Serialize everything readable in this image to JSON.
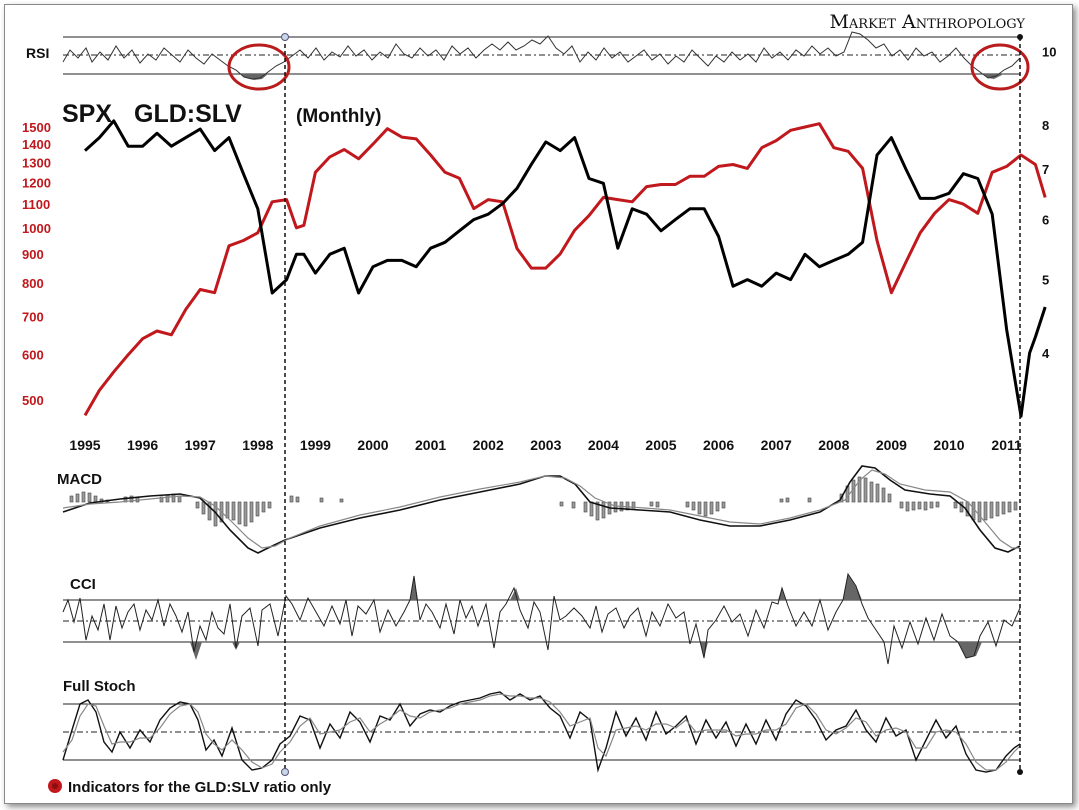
{
  "brand": "Market Anthropology",
  "title": {
    "spx": "SPX",
    "ratio": "GLD:SLV",
    "freq": "(Monthly)"
  },
  "colors": {
    "spx": "#c0181c",
    "ratio": "#000000",
    "circle": "#b81c1c"
  },
  "footnote": "Indicators for the GLD:SLV ratio only",
  "panels": {
    "rsi": "RSI",
    "macd": "MACD",
    "cci": "CCI",
    "stoch": "Full Stoch"
  },
  "chart_data": {
    "type": "line",
    "x": [
      1995,
      1996,
      1997,
      1998,
      1999,
      2000,
      2001,
      2002,
      2003,
      2004,
      2005,
      2006,
      2007,
      2008,
      2009,
      2010,
      2011
    ],
    "x_ticks": [
      "1995",
      "1996",
      "1997",
      "1998",
      "1999",
      "2000",
      "2001",
      "2002",
      "2003",
      "2004",
      "2005",
      "2006",
      "2007",
      "2008",
      "2009",
      "2010",
      "2011"
    ],
    "left_axis": {
      "ticks": [
        "1500",
        "1400",
        "1300",
        "1200",
        "1100",
        "1000",
        "900",
        "800",
        "700",
        "600",
        "500"
      ],
      "scale": "log",
      "color": "#c0181c"
    },
    "right_axis": {
      "ticks": [
        "10",
        "8",
        "7",
        "6",
        "5",
        "4"
      ],
      "scale": "log"
    },
    "series": [
      {
        "name": "SPX",
        "axis": "left",
        "values": [
          [
            1995.0,
            470
          ],
          [
            1995.25,
            520
          ],
          [
            1995.5,
            560
          ],
          [
            1995.75,
            600
          ],
          [
            1996.0,
            640
          ],
          [
            1996.25,
            660
          ],
          [
            1996.5,
            650
          ],
          [
            1996.75,
            720
          ],
          [
            1997.0,
            780
          ],
          [
            1997.25,
            770
          ],
          [
            1997.5,
            930
          ],
          [
            1997.75,
            950
          ],
          [
            1998.0,
            980
          ],
          [
            1998.25,
            1110
          ],
          [
            1998.5,
            1120
          ],
          [
            1998.67,
            1000
          ],
          [
            1998.8,
            1010
          ],
          [
            1999.0,
            1250
          ],
          [
            1999.25,
            1330
          ],
          [
            1999.5,
            1370
          ],
          [
            1999.75,
            1320
          ],
          [
            2000.0,
            1400
          ],
          [
            2000.25,
            1490
          ],
          [
            2000.5,
            1440
          ],
          [
            2000.75,
            1430
          ],
          [
            2001.0,
            1340
          ],
          [
            2001.25,
            1250
          ],
          [
            2001.5,
            1220
          ],
          [
            2001.75,
            1080
          ],
          [
            2002.0,
            1120
          ],
          [
            2002.25,
            1110
          ],
          [
            2002.5,
            920
          ],
          [
            2002.75,
            850
          ],
          [
            2003.0,
            850
          ],
          [
            2003.25,
            900
          ],
          [
            2003.5,
            990
          ],
          [
            2003.75,
            1050
          ],
          [
            2004.0,
            1130
          ],
          [
            2004.25,
            1120
          ],
          [
            2004.5,
            1110
          ],
          [
            2004.75,
            1180
          ],
          [
            2005.0,
            1190
          ],
          [
            2005.25,
            1190
          ],
          [
            2005.5,
            1230
          ],
          [
            2005.75,
            1230
          ],
          [
            2006.0,
            1280
          ],
          [
            2006.25,
            1290
          ],
          [
            2006.5,
            1270
          ],
          [
            2006.75,
            1380
          ],
          [
            2007.0,
            1420
          ],
          [
            2007.25,
            1480
          ],
          [
            2007.5,
            1500
          ],
          [
            2007.75,
            1520
          ],
          [
            2008.0,
            1380
          ],
          [
            2008.25,
            1360
          ],
          [
            2008.5,
            1270
          ],
          [
            2008.75,
            950
          ],
          [
            2009.0,
            770
          ],
          [
            2009.25,
            870
          ],
          [
            2009.5,
            980
          ],
          [
            2009.75,
            1060
          ],
          [
            2010.0,
            1120
          ],
          [
            2010.25,
            1100
          ],
          [
            2010.5,
            1060
          ],
          [
            2010.75,
            1250
          ],
          [
            2011.0,
            1280
          ],
          [
            2011.25,
            1340
          ],
          [
            2011.5,
            1290
          ],
          [
            2011.67,
            1130
          ]
        ]
      },
      {
        "name": "GLD:SLV",
        "axis": "right",
        "values": [
          [
            1995.0,
            7.4
          ],
          [
            1995.25,
            7.7
          ],
          [
            1995.5,
            8.1
          ],
          [
            1995.75,
            7.5
          ],
          [
            1996.0,
            7.5
          ],
          [
            1996.25,
            7.8
          ],
          [
            1996.5,
            7.5
          ],
          [
            1996.75,
            7.7
          ],
          [
            1997.0,
            7.9
          ],
          [
            1997.25,
            7.4
          ],
          [
            1997.5,
            7.7
          ],
          [
            1997.75,
            6.9
          ],
          [
            1998.0,
            6.2
          ],
          [
            1998.25,
            4.8
          ],
          [
            1998.5,
            5.0
          ],
          [
            1998.67,
            5.4
          ],
          [
            1998.8,
            5.4
          ],
          [
            1999.0,
            5.1
          ],
          [
            1999.25,
            5.4
          ],
          [
            1999.5,
            5.5
          ],
          [
            1999.75,
            4.8
          ],
          [
            2000.0,
            5.2
          ],
          [
            2000.25,
            5.3
          ],
          [
            2000.5,
            5.3
          ],
          [
            2000.75,
            5.2
          ],
          [
            2001.0,
            5.5
          ],
          [
            2001.25,
            5.6
          ],
          [
            2001.5,
            5.8
          ],
          [
            2001.75,
            6.0
          ],
          [
            2002.0,
            6.1
          ],
          [
            2002.25,
            6.3
          ],
          [
            2002.5,
            6.6
          ],
          [
            2002.75,
            7.1
          ],
          [
            2003.0,
            7.6
          ],
          [
            2003.25,
            7.4
          ],
          [
            2003.5,
            7.7
          ],
          [
            2003.75,
            6.8
          ],
          [
            2004.0,
            6.7
          ],
          [
            2004.25,
            5.5
          ],
          [
            2004.5,
            6.2
          ],
          [
            2004.75,
            6.1
          ],
          [
            2005.0,
            5.8
          ],
          [
            2005.25,
            6.0
          ],
          [
            2005.5,
            6.2
          ],
          [
            2005.75,
            6.2
          ],
          [
            2006.0,
            5.7
          ],
          [
            2006.25,
            4.9
          ],
          [
            2006.5,
            5.0
          ],
          [
            2006.75,
            4.9
          ],
          [
            2007.0,
            5.1
          ],
          [
            2007.25,
            5.0
          ],
          [
            2007.5,
            5.4
          ],
          [
            2007.75,
            5.2
          ],
          [
            2008.0,
            5.3
          ],
          [
            2008.25,
            5.4
          ],
          [
            2008.5,
            5.6
          ],
          [
            2008.75,
            7.3
          ],
          [
            2009.0,
            7.7
          ],
          [
            2009.25,
            7.0
          ],
          [
            2009.5,
            6.4
          ],
          [
            2009.75,
            6.4
          ],
          [
            2010.0,
            6.5
          ],
          [
            2010.25,
            6.9
          ],
          [
            2010.5,
            6.8
          ],
          [
            2010.75,
            6.1
          ],
          [
            2011.0,
            4.3
          ],
          [
            2011.25,
            3.3
          ],
          [
            2011.4,
            4.0
          ],
          [
            2011.5,
            4.2
          ],
          [
            2011.67,
            4.6
          ]
        ]
      }
    ]
  }
}
